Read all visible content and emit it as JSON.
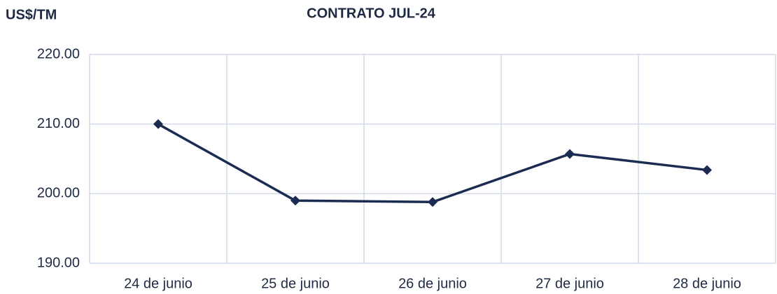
{
  "chart_data": {
    "type": "line",
    "title": "CONTRATO JUL-24",
    "ylabel": "US$/TM",
    "categories": [
      "24 de junio",
      "25 de junio",
      "26 de junio",
      "27 de junio",
      "28 de junio"
    ],
    "series": [
      {
        "name": "CONTRATO JUL-24",
        "color": "#1c2b52",
        "values": [
          210.0,
          199.0,
          198.8,
          205.7,
          203.4
        ]
      }
    ],
    "ylim": [
      190,
      220
    ],
    "yticks": [
      {
        "value": 190,
        "label": "190.00"
      },
      {
        "value": 200,
        "label": "200.00"
      },
      {
        "value": 210,
        "label": "210.00"
      },
      {
        "value": 220,
        "label": "220.00"
      }
    ],
    "grid": true
  }
}
